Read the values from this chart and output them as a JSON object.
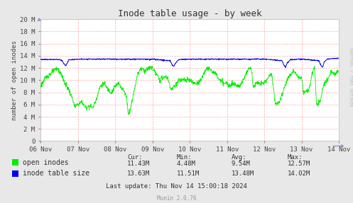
{
  "title": "Inode table usage - by week",
  "ylabel": "number of open inodes",
  "background_color": "#e8e8e8",
  "plot_bg_color": "#ffffff",
  "grid_color": "#ffaaaa",
  "x_labels": [
    "06 Nov",
    "07 Nov",
    "08 Nov",
    "09 Nov",
    "10 Nov",
    "11 Nov",
    "12 Nov",
    "13 Nov",
    "14 Nov"
  ],
  "y_tick_vals": [
    0,
    2000000,
    4000000,
    6000000,
    8000000,
    10000000,
    12000000,
    14000000,
    16000000,
    18000000,
    20000000
  ],
  "y_tick_labels": [
    "0",
    "2 M",
    "4 M",
    "6 M",
    "8 M",
    "10 M",
    "12 M",
    "14 M",
    "16 M",
    "18 M",
    "20 M"
  ],
  "green_color": "#00ee00",
  "blue_color": "#0000ee",
  "legend_items": [
    "open inodes",
    "inode table size"
  ],
  "stats_header": [
    "Cur:",
    "Min:",
    "Avg:",
    "Max:"
  ],
  "stats_green": [
    "11.43M",
    "4.48M",
    "9.54M",
    "12.57M"
  ],
  "stats_blue": [
    "13.63M",
    "11.51M",
    "13.48M",
    "14.02M"
  ],
  "last_update": "Last update: Thu Nov 14 15:00:18 2024",
  "munin_version": "Munin 2.0.76",
  "rrdtool_text": "RRDTOOL / TOBI OETIKER",
  "title_fontsize": 9,
  "axis_fontsize": 6.5,
  "legend_fontsize": 7,
  "stats_fontsize": 6.5,
  "arrow_color": "#8888cc"
}
